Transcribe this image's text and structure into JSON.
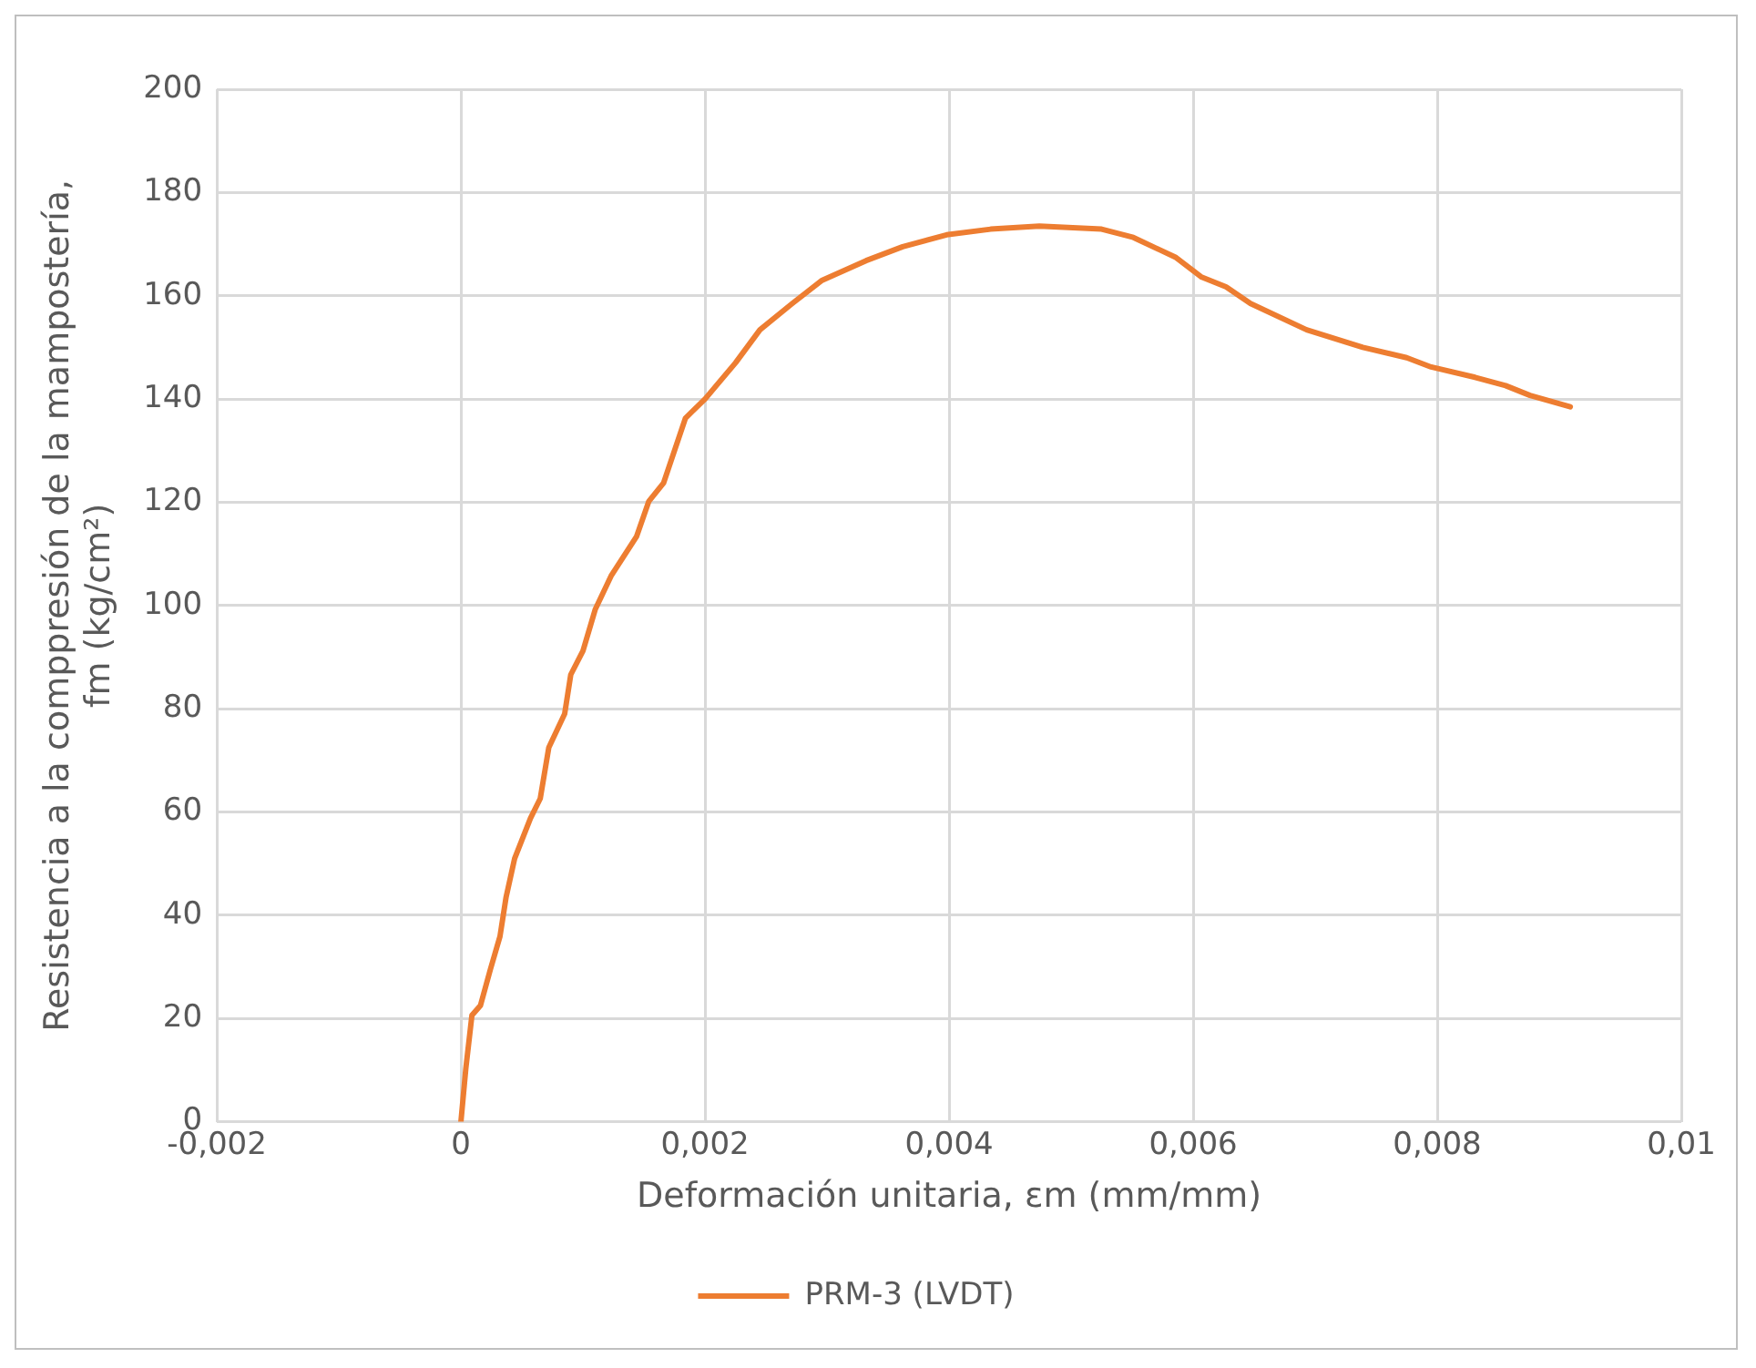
{
  "chart_data": {
    "type": "line",
    "xlabel": "Deformación unitaria, εm (mm/mm)",
    "ylabel": "Resistencia a la comppresión de la mampostería, fm (kg/cm²)",
    "xlim": [
      -0.002,
      0.01
    ],
    "xticks": [
      {
        "value": -0.002,
        "label": "-0,002"
      },
      0,
      {
        "value": 0.002,
        "label": "0,002"
      },
      {
        "value": 0.004,
        "label": "0,004"
      },
      {
        "value": 0.006,
        "label": "0,006"
      },
      {
        "value": 0.008,
        "label": "0,008"
      },
      {
        "value": 0.01,
        "label": "0,01"
      }
    ],
    "ylim": [
      0,
      200
    ],
    "yticks": [
      0,
      20,
      40,
      60,
      80,
      100,
      120,
      140,
      160,
      180,
      200
    ],
    "grid": true,
    "legend": "bottom",
    "marker": "none",
    "line_style": "solid",
    "series": [
      {
        "name": "PRM-3 (LVDT)",
        "color": "#ed7d31",
        "x": [
          0,
          4e-05,
          9e-05,
          0.00016,
          0.00024,
          0.00032,
          0.00037,
          0.00044,
          0.00057,
          0.00065,
          0.00072,
          0.00085,
          0.0009,
          0.001,
          0.0011,
          0.00123,
          0.00144,
          0.00154,
          0.00166,
          0.00184,
          0.002,
          0.00225,
          0.00245,
          0.00271,
          0.00296,
          0.00332,
          0.00362,
          0.00398,
          0.00434,
          0.00474,
          0.00525,
          0.00551,
          0.00586,
          0.00607,
          0.00627,
          0.00647,
          0.00693,
          0.00739,
          0.00775,
          0.00795,
          0.00831,
          0.00856,
          0.00876,
          0.00909
        ],
        "values": [
          0,
          10.3,
          20.6,
          22.5,
          29.4,
          35.9,
          43.5,
          51,
          58.8,
          62.6,
          72.5,
          79,
          86.6,
          91.2,
          99.2,
          105.7,
          113.4,
          120.2,
          123.7,
          136.3,
          140,
          147,
          153.4,
          158.4,
          163,
          166.8,
          169.5,
          171.8,
          172.9,
          173.5,
          172.9,
          171.3,
          167.4,
          163.6,
          161.7,
          158.5,
          153.4,
          150,
          148,
          146.2,
          144.2,
          142.6,
          140.7,
          138.5
        ]
      }
    ]
  }
}
